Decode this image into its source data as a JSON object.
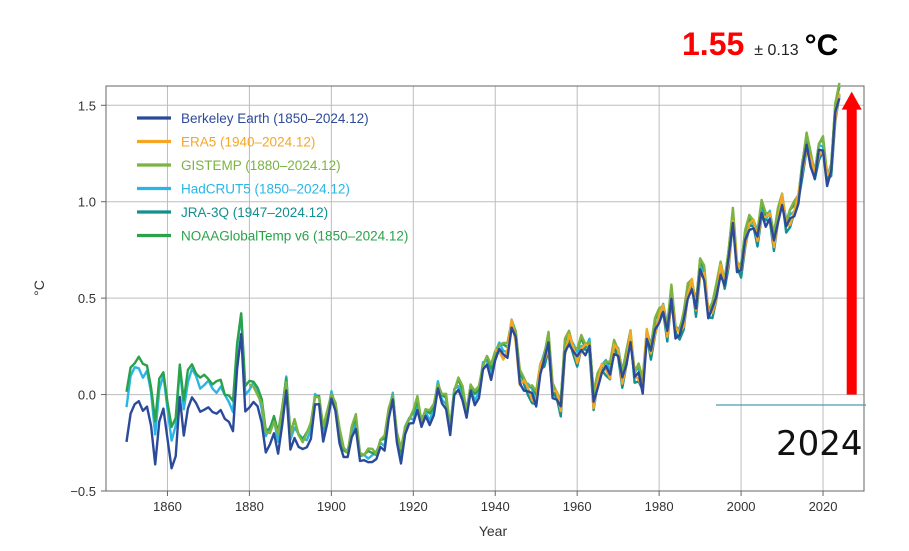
{
  "headline": {
    "value": "1.55",
    "uncertainty": "± 0.13",
    "unit": "°C",
    "value_color": "#ff0000"
  },
  "annotation": {
    "year": "2024",
    "arrow_color": "#ff0000",
    "arrow_from": 0.0,
    "arrow_to": 1.55,
    "arrow_year": 2027
  },
  "chart_data": {
    "type": "line",
    "xlabel": "Year",
    "ylabel": "°C",
    "xlim": [
      1845,
      2030
    ],
    "ylim": [
      -0.5,
      1.6
    ],
    "xticks": [
      1860,
      1880,
      1900,
      1920,
      1940,
      1960,
      1980,
      2000,
      2020
    ],
    "yticks": [
      -0.5,
      0.0,
      0.5,
      1.0,
      1.5
    ],
    "ytick_labels": [
      "−0.5",
      "0.0",
      "0.5",
      "1.0",
      "1.5"
    ],
    "grid": "vertical",
    "legend": "top-left",
    "anomalies": [
      [
        1850,
        -0.24
      ],
      [
        1851,
        -0.08
      ],
      [
        1852,
        -0.06
      ],
      [
        1853,
        -0.05
      ],
      [
        1854,
        -0.07
      ],
      [
        1855,
        -0.05
      ],
      [
        1856,
        -0.18
      ],
      [
        1857,
        -0.37
      ],
      [
        1858,
        -0.12
      ],
      [
        1859,
        -0.07
      ],
      [
        1860,
        -0.25
      ],
      [
        1861,
        -0.38
      ],
      [
        1862,
        -0.3
      ],
      [
        1863,
        -0.02
      ],
      [
        1864,
        -0.23
      ],
      [
        1865,
        -0.06
      ],
      [
        1866,
        0.0
      ],
      [
        1867,
        -0.06
      ],
      [
        1868,
        -0.1
      ],
      [
        1869,
        -0.06
      ],
      [
        1870,
        -0.06
      ],
      [
        1871,
        -0.11
      ],
      [
        1872,
        -0.1
      ],
      [
        1873,
        -0.06
      ],
      [
        1874,
        -0.13
      ],
      [
        1875,
        -0.16
      ],
      [
        1876,
        -0.18
      ],
      [
        1877,
        0.15
      ],
      [
        1878,
        0.3
      ],
      [
        1879,
        -0.1
      ],
      [
        1880,
        -0.05
      ],
      [
        1881,
        -0.03
      ],
      [
        1882,
        -0.08
      ],
      [
        1883,
        -0.15
      ],
      [
        1884,
        -0.28
      ],
      [
        1885,
        -0.26
      ],
      [
        1886,
        -0.22
      ],
      [
        1887,
        -0.3
      ],
      [
        1888,
        -0.14
      ],
      [
        1889,
        0.01
      ],
      [
        1890,
        -0.3
      ],
      [
        1891,
        -0.21
      ],
      [
        1892,
        -0.26
      ],
      [
        1893,
        -0.3
      ],
      [
        1894,
        -0.28
      ],
      [
        1895,
        -0.21
      ],
      [
        1896,
        -0.05
      ],
      [
        1897,
        -0.07
      ],
      [
        1898,
        -0.24
      ],
      [
        1899,
        -0.13
      ],
      [
        1900,
        -0.03
      ],
      [
        1901,
        -0.1
      ],
      [
        1902,
        -0.24
      ],
      [
        1903,
        -0.31
      ],
      [
        1904,
        -0.34
      ],
      [
        1905,
        -0.23
      ],
      [
        1906,
        -0.16
      ],
      [
        1907,
        -0.34
      ],
      [
        1908,
        -0.36
      ],
      [
        1909,
        -0.35
      ],
      [
        1910,
        -0.33
      ],
      [
        1911,
        -0.34
      ],
      [
        1912,
        -0.29
      ],
      [
        1913,
        -0.28
      ],
      [
        1914,
        -0.11
      ],
      [
        1915,
        -0.04
      ],
      [
        1916,
        -0.26
      ],
      [
        1917,
        -0.34
      ],
      [
        1918,
        -0.2
      ],
      [
        1919,
        -0.17
      ],
      [
        1920,
        -0.15
      ],
      [
        1921,
        -0.06
      ],
      [
        1922,
        -0.17
      ],
      [
        1923,
        -0.13
      ],
      [
        1924,
        -0.15
      ],
      [
        1925,
        -0.09
      ],
      [
        1926,
        0.02
      ],
      [
        1927,
        -0.06
      ],
      [
        1928,
        -0.06
      ],
      [
        1929,
        -0.2
      ],
      [
        1930,
        -0.02
      ],
      [
        1931,
        0.02
      ],
      [
        1932,
        -0.01
      ],
      [
        1933,
        -0.12
      ],
      [
        1934,
        0.0
      ],
      [
        1935,
        -0.05
      ],
      [
        1936,
        0.0
      ],
      [
        1937,
        0.12
      ],
      [
        1938,
        0.14
      ],
      [
        1939,
        0.09
      ],
      [
        1940,
        0.19
      ],
      [
        1941,
        0.22
      ],
      [
        1942,
        0.2
      ],
      [
        1943,
        0.21
      ],
      [
        1944,
        0.35
      ],
      [
        1945,
        0.28
      ],
      [
        1946,
        0.06
      ],
      [
        1947,
        0.04
      ],
      [
        1948,
        0.01
      ],
      [
        1949,
        -0.01
      ],
      [
        1950,
        -0.05
      ],
      [
        1951,
        0.12
      ],
      [
        1952,
        0.17
      ],
      [
        1953,
        0.26
      ],
      [
        1954,
        0.0
      ],
      [
        1955,
        -0.02
      ],
      [
        1956,
        -0.08
      ],
      [
        1957,
        0.22
      ],
      [
        1958,
        0.28
      ],
      [
        1959,
        0.22
      ],
      [
        1960,
        0.18
      ],
      [
        1961,
        0.24
      ],
      [
        1962,
        0.22
      ],
      [
        1963,
        0.24
      ],
      [
        1964,
        -0.05
      ],
      [
        1965,
        0.05
      ],
      [
        1966,
        0.12
      ],
      [
        1967,
        0.13
      ],
      [
        1968,
        0.1
      ],
      [
        1969,
        0.23
      ],
      [
        1970,
        0.2
      ],
      [
        1971,
        0.07
      ],
      [
        1972,
        0.16
      ],
      [
        1973,
        0.29
      ],
      [
        1974,
        0.08
      ],
      [
        1975,
        0.1
      ],
      [
        1976,
        0.02
      ],
      [
        1977,
        0.3
      ],
      [
        1978,
        0.21
      ],
      [
        1979,
        0.33
      ],
      [
        1980,
        0.39
      ],
      [
        1981,
        0.43
      ],
      [
        1982,
        0.31
      ],
      [
        1983,
        0.5
      ],
      [
        1984,
        0.31
      ],
      [
        1985,
        0.3
      ],
      [
        1986,
        0.37
      ],
      [
        1987,
        0.51
      ],
      [
        1988,
        0.56
      ],
      [
        1989,
        0.43
      ],
      [
        1990,
        0.64
      ],
      [
        1991,
        0.61
      ],
      [
        1992,
        0.4
      ],
      [
        1993,
        0.43
      ],
      [
        1994,
        0.51
      ],
      [
        1995,
        0.64
      ],
      [
        1996,
        0.56
      ],
      [
        1997,
        0.7
      ],
      [
        1998,
        0.9
      ],
      [
        1999,
        0.65
      ],
      [
        2000,
        0.63
      ],
      [
        2001,
        0.79
      ],
      [
        2002,
        0.87
      ],
      [
        2003,
        0.87
      ],
      [
        2004,
        0.8
      ],
      [
        2005,
        0.94
      ],
      [
        2006,
        0.89
      ],
      [
        2007,
        0.91
      ],
      [
        2008,
        0.78
      ],
      [
        2009,
        0.9
      ],
      [
        2010,
        1.0
      ],
      [
        2011,
        0.86
      ],
      [
        2012,
        0.9
      ],
      [
        2013,
        0.94
      ],
      [
        2014,
        1.0
      ],
      [
        2015,
        1.16
      ],
      [
        2016,
        1.29
      ],
      [
        2017,
        1.2
      ],
      [
        2018,
        1.12
      ],
      [
        2019,
        1.25
      ],
      [
        2020,
        1.27
      ],
      [
        2021,
        1.1
      ],
      [
        2022,
        1.15
      ],
      [
        2023,
        1.45
      ],
      [
        2024,
        1.55
      ]
    ],
    "series": [
      {
        "name": "Berkeley Earth (1850–2024.12)",
        "color": "#2c4a9a",
        "start": 1850,
        "offset": 0.0,
        "pre1900": 0.0,
        "noise": 0.02
      },
      {
        "name": "ERA5 (1940–2024.12)",
        "color": "#f5a623",
        "start": 1940,
        "offset": 0.01,
        "pre1900": 0.0,
        "noise": 0.03
      },
      {
        "name": "GISTEMP (1880–2024.12)",
        "color": "#7cb342",
        "start": 1880,
        "offset": 0.05,
        "pre1900": 0.1,
        "noise": 0.02
      },
      {
        "name": "HadCRUT5 (1850–2024.12)",
        "color": "#29b6e6",
        "start": 1850,
        "offset": 0.03,
        "pre1900": 0.16,
        "noise": 0.02
      },
      {
        "name": "JRA-3Q (1947–2024.12)",
        "color": "#138f8f",
        "start": 1947,
        "offset": -0.01,
        "pre1900": 0.0,
        "noise": 0.025
      },
      {
        "name": "NOAAGlobalTemp v6 (1850–2024.12)",
        "color": "#2aa24a",
        "start": 1850,
        "offset": 0.04,
        "pre1900": 0.2,
        "noise": 0.02
      }
    ]
  }
}
